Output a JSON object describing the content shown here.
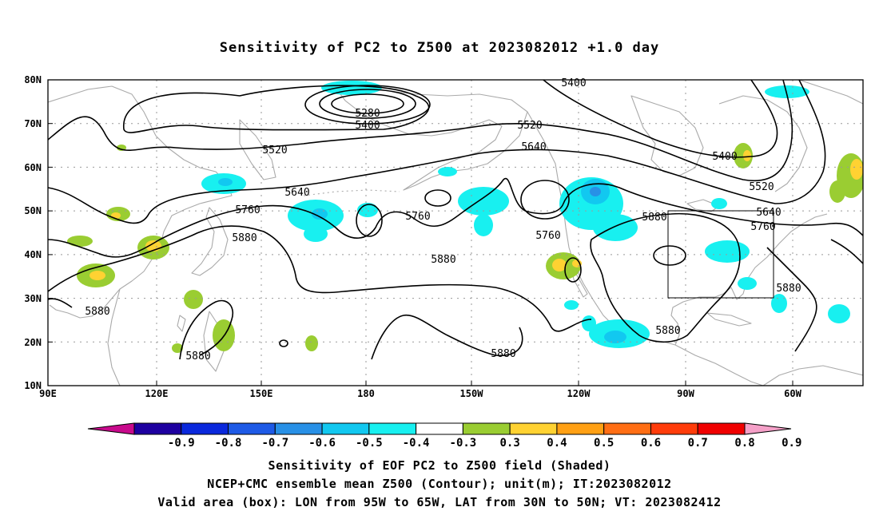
{
  "title": "Sensitivity of PC2 to Z500 at 2023082012 +1.0 day",
  "map": {
    "lat_labels": [
      "80N",
      "70N",
      "60N",
      "50N",
      "40N",
      "30N",
      "20N",
      "10N"
    ],
    "lon_labels": [
      "90E",
      "120E",
      "150E",
      "180",
      "150W",
      "120W",
      "90W",
      "60W"
    ],
    "contour_labels": [
      "5400",
      "5280",
      "5400",
      "5520",
      "5520",
      "5640",
      "5400",
      "5640",
      "5760",
      "5760",
      "5760",
      "5520",
      "5880",
      "5640",
      "5760",
      "5880",
      "5880",
      "5880",
      "5880",
      "5880",
      "5880",
      "5880"
    ],
    "box": {
      "lon_range": [
        "95W",
        "65W"
      ],
      "lat_range": [
        "30N",
        "50N"
      ]
    },
    "colors": {
      "coastline": "#aaaaaa",
      "contour": "#000000",
      "grid": "#999999",
      "box": "#000000"
    }
  },
  "colorbar": {
    "labels": [
      "-0.9",
      "-0.8",
      "-0.7",
      "-0.6",
      "-0.5",
      "-0.4",
      "-0.3",
      "0.3",
      "0.4",
      "0.5",
      "0.6",
      "0.7",
      "0.8",
      "0.9"
    ],
    "colors": [
      "#c80a8c",
      "#1e00a0",
      "#0a28dc",
      "#1e5ae6",
      "#2890e6",
      "#12c8f0",
      "#18f0f0",
      "#ffffff",
      "#9acd32",
      "#ffd232",
      "#ffa014",
      "#ff6e14",
      "#ff3c0a",
      "#f00000",
      "#f5a0c8"
    ]
  },
  "captions": [
    "Sensitivity of EOF PC2 to Z500 field (Shaded)",
    "NCEP+CMC ensemble mean Z500 (Contour); unit(m); IT:2023082012",
    "Valid area (box): LON from 95W to 65W, LAT from 30N to 50N; VT: 2023082412"
  ]
}
